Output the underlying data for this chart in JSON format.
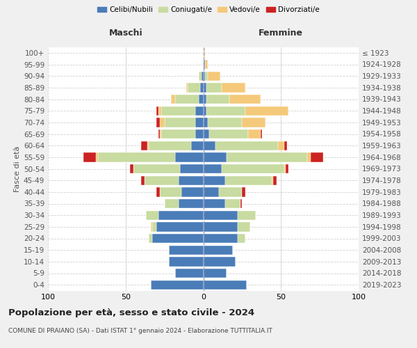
{
  "age_groups": [
    "0-4",
    "5-9",
    "10-14",
    "15-19",
    "20-24",
    "25-29",
    "30-34",
    "35-39",
    "40-44",
    "45-49",
    "50-54",
    "55-59",
    "60-64",
    "65-69",
    "70-74",
    "75-79",
    "80-84",
    "85-89",
    "90-94",
    "95-99",
    "100+"
  ],
  "birth_years": [
    "2019-2023",
    "2014-2018",
    "2009-2013",
    "2004-2008",
    "1999-2003",
    "1994-1998",
    "1989-1993",
    "1984-1988",
    "1979-1983",
    "1974-1978",
    "1969-1973",
    "1964-1968",
    "1959-1963",
    "1954-1958",
    "1949-1953",
    "1944-1948",
    "1939-1943",
    "1934-1938",
    "1929-1933",
    "1924-1928",
    "≤ 1923"
  ],
  "colors": {
    "celibe": "#4a7cb8",
    "coniugato": "#c8dba0",
    "vedovo": "#f5c97a",
    "divorziato": "#cc2222"
  },
  "maschi": {
    "celibe": [
      34,
      18,
      22,
      22,
      33,
      30,
      29,
      16,
      14,
      16,
      15,
      18,
      8,
      5,
      5,
      5,
      3,
      2,
      1,
      0,
      0
    ],
    "coniugato": [
      0,
      0,
      0,
      0,
      2,
      3,
      8,
      9,
      14,
      22,
      30,
      50,
      27,
      22,
      20,
      22,
      15,
      8,
      2,
      0,
      0
    ],
    "vedovo": [
      0,
      0,
      0,
      0,
      0,
      1,
      0,
      0,
      0,
      0,
      0,
      1,
      1,
      1,
      3,
      2,
      3,
      1,
      0,
      0,
      0
    ],
    "divorziato": [
      0,
      0,
      0,
      0,
      0,
      0,
      0,
      0,
      2,
      2,
      2,
      8,
      4,
      1,
      2,
      1,
      0,
      0,
      0,
      0,
      0
    ]
  },
  "femmine": {
    "celibe": [
      28,
      15,
      21,
      19,
      22,
      22,
      22,
      14,
      10,
      14,
      12,
      15,
      8,
      4,
      3,
      2,
      2,
      2,
      1,
      1,
      0
    ],
    "coniugato": [
      0,
      0,
      0,
      0,
      5,
      8,
      12,
      10,
      15,
      30,
      40,
      52,
      40,
      25,
      22,
      25,
      15,
      10,
      2,
      0,
      0
    ],
    "vedovo": [
      0,
      0,
      0,
      0,
      0,
      0,
      0,
      0,
      0,
      1,
      1,
      2,
      4,
      8,
      15,
      28,
      20,
      15,
      8,
      2,
      1
    ],
    "divorziato": [
      0,
      0,
      0,
      0,
      0,
      0,
      0,
      1,
      2,
      2,
      2,
      8,
      2,
      1,
      0,
      0,
      0,
      0,
      0,
      0,
      0
    ]
  },
  "xlim": 100,
  "title": "Popolazione per età, sesso e stato civile - 2024",
  "subtitle": "COMUNE DI PRAIANO (SA) - Dati ISTAT 1° gennaio 2024 - Elaborazione TUTTITALIA.IT",
  "xlabel_left": "Maschi",
  "xlabel_right": "Femmine",
  "ylabel_left": "Fasce di età",
  "background_color": "#f0f0f0",
  "plot_background": "#ffffff"
}
